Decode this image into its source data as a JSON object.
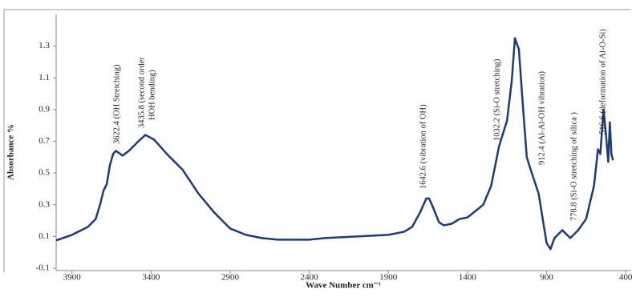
{
  "chart_data": {
    "type": "line",
    "ylabel": "Absorbance %",
    "xlabel": "Wave Number cm⁻¹",
    "xlim": [
      4000,
      370
    ],
    "xticks": [
      3900,
      3400,
      2900,
      2400,
      1900,
      1400,
      900,
      400
    ],
    "ylim": [
      -0.1,
      1.5
    ],
    "yticks": [
      1.3,
      1.1,
      0.9,
      0.7,
      0.5,
      0.3,
      0.1,
      -0.1
    ],
    "series": [
      {
        "color": "#1f3a7a",
        "x": [
          4000,
          3900,
          3800,
          3750,
          3720,
          3700,
          3680,
          3660,
          3640,
          3622,
          3580,
          3540,
          3480,
          3436,
          3380,
          3300,
          3200,
          3100,
          3000,
          2900,
          2800,
          2700,
          2600,
          2400,
          2300,
          2100,
          1900,
          1800,
          1750,
          1700,
          1660,
          1643,
          1620,
          1580,
          1550,
          1500,
          1450,
          1400,
          1300,
          1250,
          1200,
          1150,
          1120,
          1100,
          1075,
          1050,
          1025,
          1000,
          950,
          900,
          875,
          850,
          800,
          750,
          700,
          650,
          600,
          575,
          560,
          540,
          525,
          510,
          500,
          490,
          480
        ],
        "values": [
          0.075,
          0.11,
          0.16,
          0.21,
          0.31,
          0.39,
          0.43,
          0.55,
          0.62,
          0.64,
          0.61,
          0.64,
          0.7,
          0.74,
          0.71,
          0.62,
          0.52,
          0.37,
          0.25,
          0.15,
          0.11,
          0.09,
          0.08,
          0.08,
          0.09,
          0.1,
          0.11,
          0.13,
          0.16,
          0.25,
          0.34,
          0.34,
          0.29,
          0.19,
          0.17,
          0.18,
          0.21,
          0.22,
          0.3,
          0.42,
          0.67,
          0.83,
          1.08,
          1.35,
          1.28,
          0.93,
          0.6,
          0.52,
          0.37,
          0.06,
          0.02,
          0.09,
          0.14,
          0.09,
          0.14,
          0.21,
          0.42,
          0.65,
          0.62,
          0.9,
          0.75,
          0.57,
          0.82,
          0.62,
          0.58
        ]
      }
    ],
    "annotations": [
      "3622.4 (OH Stretching)",
      "3435.8 (second order",
      "HOH bending)",
      "1642.6 (vibration of OH)",
      "1032.2 (Si-O stretching)",
      "912.4 (Al-Al-OH vibration)",
      "778.8 (Si-O stretching of silica )",
      "516.6 (deformation of Al-O-Si)"
    ]
  }
}
